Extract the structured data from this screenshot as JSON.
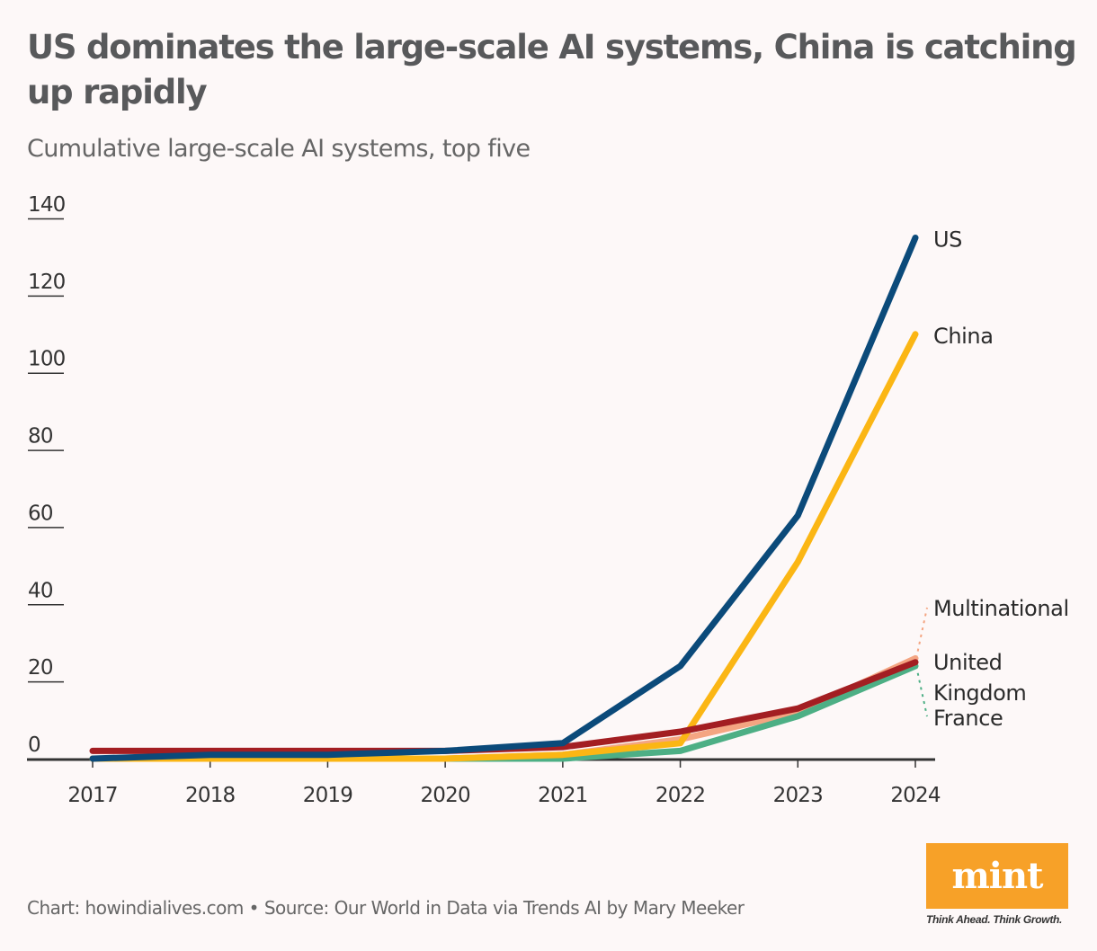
{
  "title": "US dominates the large-scale AI systems, China is catching up rapidly",
  "subtitle": "Cumulative large-scale AI systems, top five",
  "footer": "Chart: howindialives.com • Source: Our World in Data via Trends AI by Mary Meeker",
  "logo": {
    "text": "mint",
    "tagline": "Think Ahead. Think Growth.",
    "color": "#f7a128"
  },
  "chart_data": {
    "type": "line",
    "title": "US dominates the large-scale AI systems, China is catching up rapidly",
    "subtitle": "Cumulative large-scale AI systems, top five",
    "xlabel": "",
    "ylabel": "",
    "x": [
      "2017",
      "2018",
      "2019",
      "2020",
      "2021",
      "2022",
      "2023",
      "2024"
    ],
    "ylim": [
      0,
      140
    ],
    "yticks": [
      "0",
      "20",
      "40",
      "60",
      "80",
      "100",
      "120",
      "140"
    ],
    "grid": false,
    "legend": "direct labels at line ends (right)",
    "series": [
      {
        "name": "Multinational",
        "color": "#f4a582",
        "values": [
          0,
          0,
          0,
          0,
          1,
          5,
          12,
          26
        ]
      },
      {
        "name": "France",
        "color": "#4daf85",
        "values": [
          0,
          0,
          0,
          0,
          0,
          2,
          11,
          24
        ]
      },
      {
        "name": "China",
        "color": "#fbb614",
        "values": [
          0,
          0,
          0,
          0,
          1,
          4,
          51,
          110
        ]
      },
      {
        "name": "United Kingdom",
        "color": "#a31e22",
        "values": [
          2,
          2,
          2,
          2,
          3,
          7,
          13,
          25
        ]
      },
      {
        "name": "US",
        "color": "#0b4a7a",
        "values": [
          0,
          1,
          1,
          2,
          4,
          24,
          63,
          135
        ]
      }
    ],
    "labels": [
      {
        "series": "US",
        "text": "US"
      },
      {
        "series": "China",
        "text": "China"
      },
      {
        "series": "Multinational",
        "text": "Multinational"
      },
      {
        "series": "United Kingdom",
        "text": "United Kingdom"
      },
      {
        "series": "France",
        "text": "France"
      }
    ]
  }
}
